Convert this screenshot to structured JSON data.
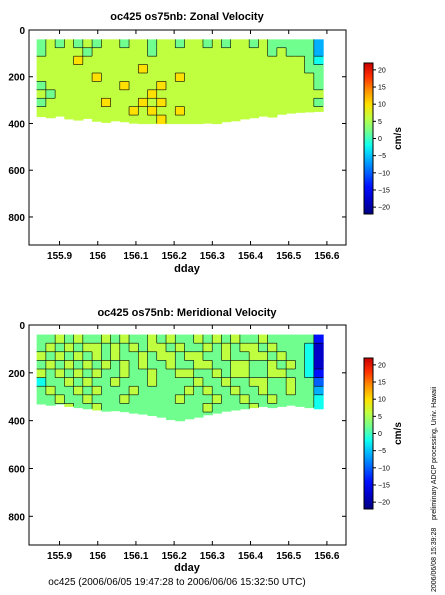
{
  "figure": {
    "footer": "oc425 (2006/06/05 19:47:28 to 2006/06/06 15:32:50 UTC)",
    "side_note": "preliminary ADCP processing,   Univ. Hawaii",
    "side_timestamp": "2006/06/08 15:39:28"
  },
  "colormap": [
    "#00007f",
    "#0000c8",
    "#0010ff",
    "#0060ff",
    "#00b0ff",
    "#10ffef",
    "#70ff8f",
    "#c0ff40",
    "#ffe000",
    "#ff9000",
    "#ff3000",
    "#c80000"
  ],
  "chart_data": [
    {
      "type": "heatmap",
      "title": "oc425 os75nb: Zonal Velocity",
      "xlabel": "dday",
      "ylabel": "",
      "xlim": [
        155.82,
        156.65
      ],
      "ylim": [
        920,
        0
      ],
      "xticks": [
        155.9,
        156,
        156.1,
        156.2,
        156.3,
        156.4,
        156.5,
        156.6
      ],
      "xtick_labels": [
        "155.9",
        "156",
        "156.1",
        "156.2",
        "156.3",
        "156.4",
        "156.5",
        "156.6"
      ],
      "yticks": [
        0,
        200,
        400,
        600,
        800
      ],
      "ytick_labels": [
        "0",
        "200",
        "400",
        "600",
        "800"
      ],
      "colorbar": {
        "label": "cm/s",
        "range": [
          -22,
          22
        ],
        "ticks": [
          20,
          15,
          10,
          5,
          0,
          -5,
          -10,
          -15,
          -20
        ],
        "tick_labels": [
          "20",
          "15",
          "10",
          "5",
          "0",
          "−5",
          "−10",
          "−15",
          "−20"
        ]
      },
      "x_range": [
        155.84,
        156.59
      ],
      "depth_range": [
        40,
        400
      ],
      "values_cm_s": [
        [
          2,
          4,
          3,
          6,
          3,
          4,
          2,
          5,
          4,
          3,
          6,
          4,
          3,
          5,
          4,
          3,
          5,
          4,
          3,
          4,
          3,
          5,
          4,
          3,
          4,
          2,
          3,
          2,
          3,
          1,
          -6
        ],
        [
          3,
          5,
          6,
          4,
          5,
          3,
          6,
          4,
          5,
          6,
          4,
          5,
          3,
          6,
          5,
          4,
          6,
          5,
          4,
          5,
          4,
          6,
          5,
          4,
          5,
          3,
          4,
          3,
          2,
          1,
          -4
        ],
        [
          5,
          7,
          5,
          6,
          8,
          6,
          5,
          7,
          6,
          5,
          7,
          6,
          5,
          6,
          7,
          5,
          6,
          5,
          6,
          7,
          5,
          6,
          7,
          5,
          6,
          5,
          4,
          5,
          4,
          2,
          -3
        ],
        [
          6,
          5,
          7,
          6,
          5,
          7,
          6,
          5,
          7,
          6,
          5,
          8,
          6,
          5,
          7,
          6,
          5,
          7,
          6,
          5,
          6,
          7,
          5,
          6,
          5,
          6,
          5,
          4,
          5,
          3,
          1
        ],
        [
          4,
          6,
          5,
          7,
          6,
          5,
          8,
          6,
          5,
          7,
          6,
          5,
          7,
          6,
          5,
          8,
          6,
          7,
          5,
          6,
          7,
          5,
          6,
          7,
          6,
          5,
          6,
          5,
          4,
          4,
          3
        ],
        [
          3,
          5,
          6,
          5,
          7,
          6,
          5,
          7,
          6,
          8,
          5,
          6,
          7,
          9,
          6,
          5,
          7,
          6,
          5,
          7,
          6,
          5,
          7,
          6,
          5,
          6,
          5,
          6,
          5,
          4,
          3
        ],
        [
          4,
          3,
          5,
          6,
          5,
          6,
          7,
          5,
          6,
          5,
          7,
          6,
          8,
          6,
          7,
          6,
          5,
          6,
          7,
          5,
          6,
          7,
          5,
          6,
          7,
          5,
          6,
          5,
          4,
          5,
          4
        ],
        [
          3,
          4,
          6,
          5,
          7,
          5,
          6,
          8,
          6,
          7,
          6,
          9,
          7,
          8,
          6,
          7,
          6,
          5,
          6,
          7,
          6,
          5,
          6,
          7,
          6,
          5,
          6,
          5,
          6,
          4,
          3
        ],
        [
          4,
          5,
          4,
          6,
          5,
          7,
          6,
          5,
          7,
          6,
          8,
          7,
          9,
          7,
          6,
          8,
          7,
          6,
          7,
          6,
          7,
          6,
          5,
          6,
          5,
          6,
          5,
          6,
          5,
          4,
          4
        ],
        [
          5,
          4,
          5,
          5,
          6,
          5,
          7,
          6,
          5,
          7,
          6,
          7,
          6,
          8,
          7,
          6,
          7,
          6,
          7,
          6,
          7,
          6,
          7,
          5,
          6,
          5,
          6,
          5,
          4,
          5,
          5
        ]
      ],
      "bottom_boundary_m": [
        370,
        375,
        368,
        380,
        385,
        378,
        390,
        395,
        388,
        392,
        398,
        405,
        408,
        412,
        420,
        415,
        410,
        402,
        398,
        405,
        392,
        388,
        380,
        375,
        368,
        372,
        360,
        355,
        352,
        350,
        348
      ]
    },
    {
      "type": "heatmap",
      "title": "oc425 os75nb: Meridional Velocity",
      "xlabel": "dday",
      "ylabel": "",
      "xlim": [
        155.82,
        156.65
      ],
      "ylim": [
        920,
        0
      ],
      "xticks": [
        155.9,
        156,
        156.1,
        156.2,
        156.3,
        156.4,
        156.5,
        156.6
      ],
      "xtick_labels": [
        "155.9",
        "156",
        "156.1",
        "156.2",
        "156.3",
        "156.4",
        "156.5",
        "156.6"
      ],
      "yticks": [
        0,
        200,
        400,
        600,
        800
      ],
      "ytick_labels": [
        "0",
        "200",
        "400",
        "600",
        "800"
      ],
      "colorbar": {
        "label": "cm/s",
        "range": [
          -22,
          22
        ],
        "ticks": [
          20,
          15,
          10,
          5,
          0,
          -5,
          -10,
          -15,
          -20
        ],
        "tick_labels": [
          "20",
          "15",
          "10",
          "5",
          "0",
          "−5",
          "−10",
          "−15",
          "−20"
        ]
      },
      "x_range": [
        155.84,
        156.59
      ],
      "depth_range": [
        40,
        400
      ],
      "values_cm_s": [
        [
          1,
          3,
          5,
          2,
          6,
          3,
          1,
          5,
          2,
          6,
          3,
          1,
          4,
          2,
          5,
          1,
          3,
          6,
          2,
          4,
          1,
          5,
          3,
          2,
          4,
          1,
          3,
          2,
          1,
          0,
          -14
        ],
        [
          3,
          6,
          2,
          5,
          1,
          4,
          6,
          2,
          5,
          3,
          6,
          2,
          4,
          6,
          1,
          5,
          3,
          2,
          6,
          3,
          5,
          2,
          6,
          4,
          1,
          5,
          3,
          2,
          1,
          -1,
          -16
        ],
        [
          5,
          2,
          6,
          3,
          7,
          2,
          5,
          1,
          6,
          3,
          2,
          5,
          1,
          4,
          6,
          2,
          5,
          6,
          3,
          1,
          6,
          3,
          2,
          5,
          6,
          2,
          4,
          3,
          2,
          -2,
          -18
        ],
        [
          2,
          5,
          1,
          6,
          3,
          5,
          2,
          4,
          1,
          5,
          2,
          6,
          3,
          1,
          5,
          3,
          1,
          4,
          5,
          2,
          3,
          6,
          4,
          1,
          3,
          5,
          2,
          4,
          1,
          -3,
          -17
        ],
        [
          4,
          1,
          5,
          2,
          4,
          1,
          6,
          3,
          2,
          4,
          1,
          3,
          5,
          2,
          0,
          4,
          6,
          2,
          1,
          5,
          2,
          4,
          6,
          3,
          2,
          4,
          5,
          1,
          2,
          -2,
          -14
        ],
        [
          -1,
          3,
          2,
          5,
          1,
          6,
          3,
          1,
          5,
          2,
          3,
          1,
          4,
          2,
          1,
          3,
          2,
          5,
          3,
          2,
          4,
          1,
          3,
          5,
          4,
          2,
          3,
          5,
          1,
          0,
          -10
        ],
        [
          2,
          4,
          1,
          3,
          5,
          2,
          4,
          2,
          3,
          1,
          4,
          2,
          0,
          1,
          3,
          1,
          4,
          2,
          5,
          3,
          1,
          4,
          2,
          3,
          5,
          3,
          2,
          4,
          3,
          1,
          -6
        ],
        [
          3,
          1,
          4,
          2,
          3,
          5,
          1,
          3,
          2,
          4,
          1,
          3,
          1,
          0,
          2,
          4,
          1,
          3,
          2,
          4,
          3,
          2,
          5,
          2,
          3,
          4,
          2,
          3,
          2,
          1,
          -3
        ],
        [
          1,
          3,
          2,
          4,
          2,
          3,
          4,
          2,
          3,
          2,
          3,
          1,
          2,
          1,
          3,
          2,
          3,
          1,
          4,
          2,
          3,
          2,
          3,
          4,
          2,
          3,
          2,
          3,
          2,
          1,
          -2
        ],
        [
          2,
          3,
          3,
          2,
          3,
          3,
          2,
          3,
          3,
          2,
          2,
          3,
          2,
          2,
          3,
          3,
          2,
          3,
          2,
          3,
          2,
          3,
          2,
          3,
          3,
          2,
          3,
          2,
          3,
          2,
          0
        ]
      ],
      "bottom_boundary_m": [
        330,
        335,
        330,
        340,
        345,
        350,
        355,
        360,
        358,
        362,
        368,
        372,
        378,
        385,
        395,
        400,
        392,
        385,
        375,
        368,
        360,
        355,
        350,
        345,
        340,
        345,
        340,
        335,
        340,
        345,
        350
      ]
    }
  ]
}
